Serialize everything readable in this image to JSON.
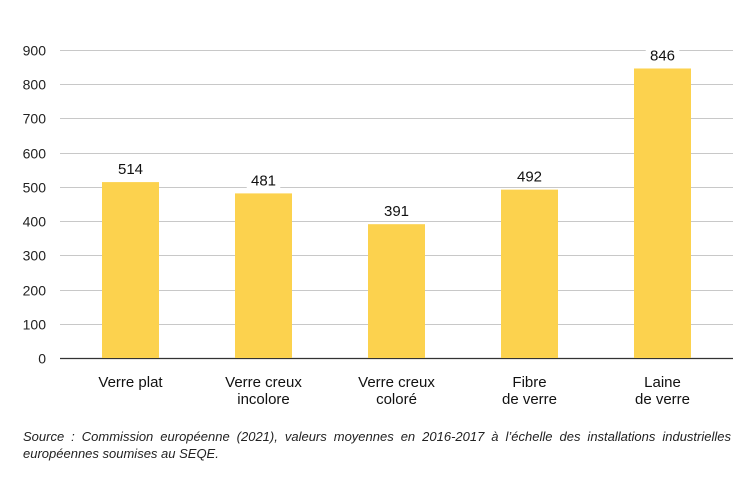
{
  "chart_data": {
    "type": "bar",
    "categories": [
      [
        "Verre plat"
      ],
      [
        "Verre creux",
        "incolore"
      ],
      [
        "Verre creux",
        "coloré"
      ],
      [
        "Fibre",
        "de verre"
      ],
      [
        "Laine",
        "de verre"
      ]
    ],
    "values": [
      514,
      481,
      391,
      492,
      846
    ],
    "data_labels": [
      "514",
      "481",
      "391",
      "492",
      "846"
    ],
    "yticks": [
      "0",
      "100",
      "200",
      "300",
      "400",
      "500",
      "600",
      "700",
      "800",
      "900"
    ],
    "ylim": [
      0,
      900
    ],
    "grid": true,
    "legend": false,
    "bar_color": "#fcd24e",
    "grid_color": "#c8c8c8",
    "axis_color": "#333333",
    "title": "",
    "xlabel": "",
    "ylabel": ""
  },
  "footer": {
    "source": "Source : Commission européenne (2021), valeurs moyennes en 2016-2017 à l’échelle des installations industrielles européennes soumises au SEQE."
  }
}
